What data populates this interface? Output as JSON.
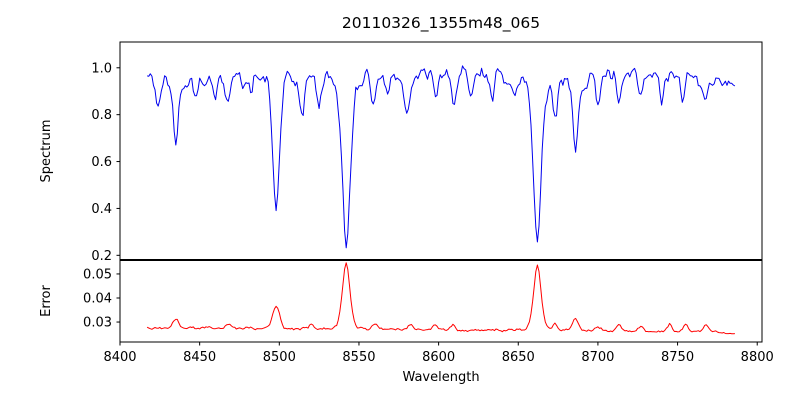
{
  "title": "20110326_1355m48_065",
  "colors": {
    "spectrum_line": "#0000ee",
    "error_line": "#ff0000",
    "frame": "#000000",
    "background": "#ffffff"
  },
  "x_axis": {
    "label": "Wavelength",
    "xlim": [
      8400,
      8803
    ],
    "ticks": [
      8400,
      8450,
      8500,
      8550,
      8600,
      8650,
      8700,
      8750,
      8800
    ],
    "tick_labels": [
      "8400",
      "8450",
      "8500",
      "8550",
      "8600",
      "8650",
      "8700",
      "8750",
      "8800"
    ]
  },
  "chart_data": [
    {
      "type": "line",
      "panel": "top",
      "series_name": "Spectrum",
      "ylabel": "Spectrum",
      "color": "#0000ee",
      "ylim": [
        0.18,
        1.11
      ],
      "yticks": [
        1.0,
        0.8,
        0.6,
        0.4,
        0.2
      ],
      "ytick_labels": [
        "1.0",
        "0.8",
        "0.6",
        "0.4",
        "0.2"
      ],
      "x_start": 8417,
      "x_end": 8786,
      "x_step": 1,
      "continuum_level": 0.955,
      "continuum_arch": 0.012,
      "noise_amplitude": 0.05,
      "noise_fine": 0.012,
      "clip_max": 1.07,
      "seed": 42,
      "grid": false,
      "legend": "none",
      "absorption_lines": [
        {
          "center": 8424,
          "min": 0.83,
          "width": 1.3
        },
        {
          "center": 8435,
          "min": 0.7,
          "width": 1.8
        },
        {
          "center": 8448,
          "min": 0.875,
          "width": 1.2
        },
        {
          "center": 8460,
          "min": 0.88,
          "width": 1.2
        },
        {
          "center": 8468,
          "min": 0.86,
          "width": 1.4
        },
        {
          "center": 8482,
          "min": 0.9,
          "width": 1.2
        },
        {
          "center": 8498,
          "min": 0.4,
          "width": 2.2
        },
        {
          "center": 8514,
          "min": 0.79,
          "width": 1.5
        },
        {
          "center": 8525,
          "min": 0.86,
          "width": 1.3
        },
        {
          "center": 8542,
          "min": 0.23,
          "width": 2.6
        },
        {
          "center": 8559,
          "min": 0.85,
          "width": 1.4
        },
        {
          "center": 8568,
          "min": 0.88,
          "width": 1.2
        },
        {
          "center": 8580,
          "min": 0.82,
          "width": 1.6
        },
        {
          "center": 8598,
          "min": 0.87,
          "width": 1.3
        },
        {
          "center": 8609,
          "min": 0.84,
          "width": 1.4
        },
        {
          "center": 8620,
          "min": 0.85,
          "width": 1.4
        },
        {
          "center": 8634,
          "min": 0.9,
          "width": 1.2
        },
        {
          "center": 8648,
          "min": 0.87,
          "width": 1.5
        },
        {
          "center": 8662,
          "min": 0.26,
          "width": 2.5
        },
        {
          "center": 8673,
          "min": 0.79,
          "width": 1.4
        },
        {
          "center": 8686,
          "min": 0.63,
          "width": 1.8
        },
        {
          "center": 8700,
          "min": 0.86,
          "width": 1.4
        },
        {
          "center": 8713,
          "min": 0.85,
          "width": 1.4
        },
        {
          "center": 8727,
          "min": 0.87,
          "width": 1.3
        },
        {
          "center": 8740,
          "min": 0.86,
          "width": 1.3
        },
        {
          "center": 8753,
          "min": 0.87,
          "width": 1.3
        },
        {
          "center": 8768,
          "min": 0.86,
          "width": 1.3
        },
        {
          "center": 8778,
          "min": 0.9,
          "width": 1.2
        }
      ]
    },
    {
      "type": "line",
      "panel": "bottom",
      "series_name": "Error",
      "ylabel": "Error",
      "color": "#ff0000",
      "ylim": [
        0.0217,
        0.0558
      ],
      "yticks": [
        0.05,
        0.04,
        0.03
      ],
      "ytick_labels": [
        "0.05",
        "0.04",
        "0.03"
      ],
      "x_start": 8417,
      "x_end": 8786,
      "x_step": 1,
      "baseline_start": 0.0276,
      "baseline_end": 0.0258,
      "noise_amplitude": 0.0012,
      "clip_max": 0.0552,
      "seed": 42,
      "grid": false,
      "legend": "none",
      "peaks": [
        {
          "center": 8435,
          "peak": 0.031,
          "width": 2.0
        },
        {
          "center": 8468,
          "peak": 0.0292,
          "width": 1.5
        },
        {
          "center": 8498,
          "peak": 0.0367,
          "width": 2.2
        },
        {
          "center": 8520,
          "peak": 0.029,
          "width": 1.5
        },
        {
          "center": 8542,
          "peak": 0.0548,
          "width": 2.4
        },
        {
          "center": 8560,
          "peak": 0.0288,
          "width": 1.5
        },
        {
          "center": 8582,
          "peak": 0.0287,
          "width": 1.5
        },
        {
          "center": 8598,
          "peak": 0.0289,
          "width": 1.5
        },
        {
          "center": 8609,
          "peak": 0.0285,
          "width": 1.5
        },
        {
          "center": 8662,
          "peak": 0.054,
          "width": 2.4
        },
        {
          "center": 8673,
          "peak": 0.0292,
          "width": 1.5
        },
        {
          "center": 8686,
          "peak": 0.0316,
          "width": 1.8
        },
        {
          "center": 8700,
          "peak": 0.0282,
          "width": 1.5
        },
        {
          "center": 8713,
          "peak": 0.0285,
          "width": 1.5
        },
        {
          "center": 8727,
          "peak": 0.0283,
          "width": 1.5
        },
        {
          "center": 8745,
          "peak": 0.029,
          "width": 1.5
        },
        {
          "center": 8755,
          "peak": 0.0287,
          "width": 1.5
        },
        {
          "center": 8768,
          "peak": 0.0286,
          "width": 1.5
        },
        {
          "center": 8784,
          "peak": 0.025,
          "width": 2.5
        }
      ]
    }
  ]
}
